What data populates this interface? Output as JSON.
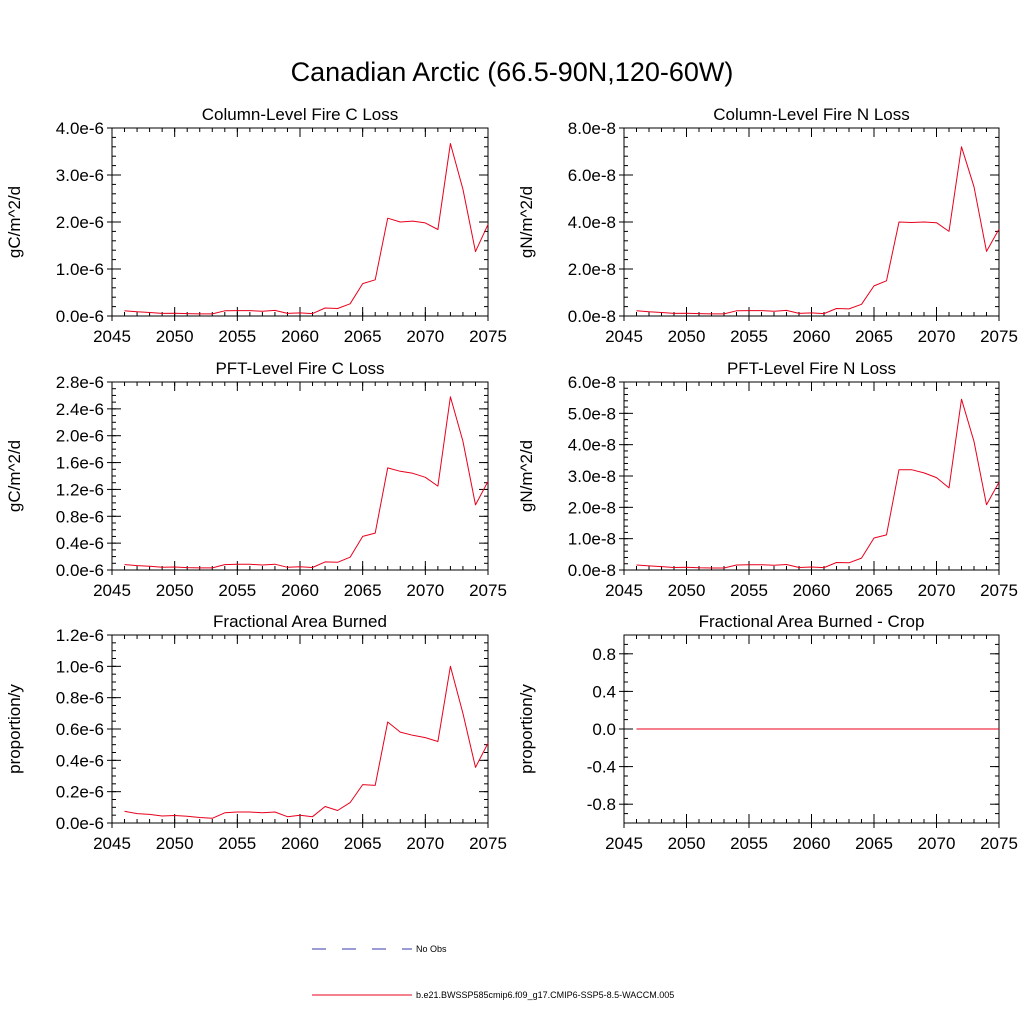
{
  "title": "Canadian Arctic (66.5-90N,120-60W)",
  "colors": {
    "model": "#e8001c",
    "obs": "#3a3aa8",
    "axis": "#000000"
  },
  "legend": {
    "obs_label": "No Obs",
    "model_label": "b.e21.BWSSP585cmip6.f09_g17.CMIP6-SSP5-8.5-WACCM.005"
  },
  "chart_data": [
    {
      "type": "line",
      "title": "Column-Level Fire C Loss",
      "ylabel": "gC/m^2/d",
      "xlim": [
        2045,
        2075
      ],
      "ylim": [
        0,
        4e-06
      ],
      "yticks": [
        0,
        1e-06,
        2e-06,
        3e-06,
        4e-06
      ],
      "yticklabels": [
        "0.0e-6",
        "1.0e-6",
        "2.0e-6",
        "3.0e-6",
        "4.0e-6"
      ],
      "yminor": 2e-07,
      "xticks": [
        2045,
        2050,
        2055,
        2060,
        2065,
        2070,
        2075
      ],
      "xticklabels": [
        "2045",
        "2050",
        "2055",
        "2060",
        "2065",
        "2070",
        "2075"
      ],
      "x": [
        2046,
        2047,
        2048,
        2049,
        2050,
        2051,
        2052,
        2053,
        2054,
        2055,
        2056,
        2057,
        2058,
        2059,
        2060,
        2061,
        2062,
        2063,
        2064,
        2065,
        2066,
        2067,
        2068,
        2069,
        2070,
        2071,
        2072,
        2073,
        2074,
        2075
      ],
      "series": [
        {
          "name": "model",
          "values": [
            1.1e-07,
            9e-08,
            7.5e-08,
            5.5e-08,
            6e-08,
            5e-08,
            4.5e-08,
            4.5e-08,
            1.1e-07,
            1.15e-07,
            1.15e-07,
            1e-07,
            1.2e-07,
            5.5e-08,
            6.5e-08,
            5e-08,
            1.7e-07,
            1.6e-07,
            2.6e-07,
            6.9e-07,
            7.7e-07,
            2.08e-06,
            2e-06,
            2.02e-06,
            1.98e-06,
            1.84e-06,
            3.67e-06,
            2.7e-06,
            1.37e-06,
            1.95e-06
          ]
        }
      ]
    },
    {
      "type": "line",
      "title": "Column-Level Fire N Loss",
      "ylabel": "gN/m^2/d",
      "xlim": [
        2045,
        2075
      ],
      "ylim": [
        0,
        8e-08
      ],
      "yticks": [
        0,
        2e-08,
        4e-08,
        6e-08,
        8e-08
      ],
      "yticklabels": [
        "0.0e-8",
        "2.0e-8",
        "4.0e-8",
        "6.0e-8",
        "8.0e-8"
      ],
      "yminor": 4e-09,
      "xticks": [
        2045,
        2050,
        2055,
        2060,
        2065,
        2070,
        2075
      ],
      "xticklabels": [
        "2045",
        "2050",
        "2055",
        "2060",
        "2065",
        "2070",
        "2075"
      ],
      "x": [
        2046,
        2047,
        2048,
        2049,
        2050,
        2051,
        2052,
        2053,
        2054,
        2055,
        2056,
        2057,
        2058,
        2059,
        2060,
        2061,
        2062,
        2063,
        2064,
        2065,
        2066,
        2067,
        2068,
        2069,
        2070,
        2071,
        2072,
        2073,
        2074,
        2075
      ],
      "series": [
        {
          "name": "model",
          "values": [
            2.2e-09,
            1.8e-09,
            1.5e-09,
            1.1e-09,
            1.2e-09,
            1e-09,
            9e-10,
            9e-10,
            2.2e-09,
            2.3e-09,
            2.3e-09,
            2e-09,
            2.4e-09,
            1.1e-09,
            1.3e-09,
            1e-09,
            3.2e-09,
            3e-09,
            5e-09,
            1.28e-08,
            1.5e-08,
            4e-08,
            3.98e-08,
            4e-08,
            3.97e-08,
            3.6e-08,
            7.2e-08,
            5.5e-08,
            2.75e-08,
            3.7e-08
          ]
        }
      ]
    },
    {
      "type": "line",
      "title": "PFT-Level Fire C Loss",
      "ylabel": "gC/m^2/d",
      "xlim": [
        2045,
        2075
      ],
      "ylim": [
        0,
        2.8e-06
      ],
      "yticks": [
        0,
        4e-07,
        8e-07,
        1.2e-06,
        1.6e-06,
        2e-06,
        2.4e-06,
        2.8e-06
      ],
      "yticklabels": [
        "0.0e-6",
        "0.4e-6",
        "0.8e-6",
        "1.2e-6",
        "1.6e-6",
        "2.0e-6",
        "2.4e-6",
        "2.8e-6"
      ],
      "yminor": 1e-07,
      "xticks": [
        2045,
        2050,
        2055,
        2060,
        2065,
        2070,
        2075
      ],
      "xticklabels": [
        "2045",
        "2050",
        "2055",
        "2060",
        "2065",
        "2070",
        "2075"
      ],
      "x": [
        2046,
        2047,
        2048,
        2049,
        2050,
        2051,
        2052,
        2053,
        2054,
        2055,
        2056,
        2057,
        2058,
        2059,
        2060,
        2061,
        2062,
        2063,
        2064,
        2065,
        2066,
        2067,
        2068,
        2069,
        2070,
        2071,
        2072,
        2073,
        2074,
        2075
      ],
      "series": [
        {
          "name": "model",
          "values": [
            8e-08,
            6.5e-08,
            5.5e-08,
            4e-08,
            4.5e-08,
            3.5e-08,
            3.2e-08,
            3.2e-08,
            8e-08,
            8.5e-08,
            8.5e-08,
            7.5e-08,
            8.7e-08,
            4e-08,
            4.8e-08,
            3.7e-08,
            1.2e-07,
            1.15e-07,
            1.9e-07,
            5e-07,
            5.5e-07,
            1.52e-06,
            1.47e-06,
            1.44e-06,
            1.38e-06,
            1.25e-06,
            2.58e-06,
            1.92e-06,
            9.7e-07,
            1.32e-06
          ]
        }
      ]
    },
    {
      "type": "line",
      "title": "PFT-Level Fire N Loss",
      "ylabel": "gN/m^2/d",
      "xlim": [
        2045,
        2075
      ],
      "ylim": [
        0,
        6e-08
      ],
      "yticks": [
        0,
        1e-08,
        2e-08,
        3e-08,
        4e-08,
        5e-08,
        6e-08
      ],
      "yticklabels": [
        "0.0e-8",
        "1.0e-8",
        "2.0e-8",
        "3.0e-8",
        "4.0e-8",
        "5.0e-8",
        "6.0e-8"
      ],
      "yminor": 2e-09,
      "xticks": [
        2045,
        2050,
        2055,
        2060,
        2065,
        2070,
        2075
      ],
      "xticklabels": [
        "2045",
        "2050",
        "2055",
        "2060",
        "2065",
        "2070",
        "2075"
      ],
      "x": [
        2046,
        2047,
        2048,
        2049,
        2050,
        2051,
        2052,
        2053,
        2054,
        2055,
        2056,
        2057,
        2058,
        2059,
        2060,
        2061,
        2062,
        2063,
        2064,
        2065,
        2066,
        2067,
        2068,
        2069,
        2070,
        2071,
        2072,
        2073,
        2074,
        2075
      ],
      "series": [
        {
          "name": "model",
          "values": [
            1.6e-09,
            1.3e-09,
            1.1e-09,
            8e-10,
            9e-10,
            7e-10,
            6.5e-10,
            6.5e-10,
            1.6e-09,
            1.7e-09,
            1.7e-09,
            1.5e-09,
            1.75e-09,
            8e-10,
            9.5e-10,
            7.5e-10,
            2.4e-09,
            2.3e-09,
            3.8e-09,
            1.02e-08,
            1.12e-08,
            3.2e-08,
            3.2e-08,
            3.1e-08,
            2.95e-08,
            2.62e-08,
            5.45e-08,
            4.1e-08,
            2.08e-08,
            2.8e-08
          ]
        }
      ]
    },
    {
      "type": "line",
      "title": "Fractional Area Burned",
      "ylabel": "proportion/y",
      "xlim": [
        2045,
        2075
      ],
      "ylim": [
        0,
        1.2e-06
      ],
      "yticks": [
        0,
        2e-07,
        4e-07,
        6e-07,
        8e-07,
        1e-06,
        1.2e-06
      ],
      "yticklabels": [
        "0.0e-6",
        "0.2e-6",
        "0.4e-6",
        "0.6e-6",
        "0.8e-6",
        "1.0e-6",
        "1.2e-6"
      ],
      "yminor": 5e-08,
      "xticks": [
        2045,
        2050,
        2055,
        2060,
        2065,
        2070,
        2075
      ],
      "xticklabels": [
        "2045",
        "2050",
        "2055",
        "2060",
        "2065",
        "2070",
        "2075"
      ],
      "x": [
        2046,
        2047,
        2048,
        2049,
        2050,
        2051,
        2052,
        2053,
        2054,
        2055,
        2056,
        2057,
        2058,
        2059,
        2060,
        2061,
        2062,
        2063,
        2064,
        2065,
        2066,
        2067,
        2068,
        2069,
        2070,
        2071,
        2072,
        2073,
        2074,
        2075
      ],
      "series": [
        {
          "name": "model",
          "values": [
            7.5e-08,
            6e-08,
            5.5e-08,
            4.5e-08,
            4.8e-08,
            4.3e-08,
            3.5e-08,
            3e-08,
            6.5e-08,
            7e-08,
            7e-08,
            6.5e-08,
            7e-08,
            4e-08,
            5e-08,
            4e-08,
            1.05e-07,
            8e-08,
            1.3e-07,
            2.45e-07,
            2.4e-07,
            6.45e-07,
            5.8e-07,
            5.6e-07,
            5.45e-07,
            5.2e-07,
            1e-06,
            7e-07,
            3.55e-07,
            5.1e-07
          ]
        }
      ]
    },
    {
      "type": "line",
      "title": "Fractional Area Burned - Crop",
      "ylabel": "proportion/y",
      "xlim": [
        2045,
        2075
      ],
      "ylim": [
        -1.0,
        1.0
      ],
      "yticks": [
        -0.8,
        -0.4,
        0.0,
        0.4,
        0.8
      ],
      "yticklabels": [
        "-0.8",
        "-0.4",
        "0.0",
        "0.4",
        "0.8"
      ],
      "yminor": 0.1,
      "xticks": [
        2045,
        2050,
        2055,
        2060,
        2065,
        2070,
        2075
      ],
      "xticklabels": [
        "2045",
        "2050",
        "2055",
        "2060",
        "2065",
        "2070",
        "2075"
      ],
      "x": [
        2046,
        2047,
        2048,
        2049,
        2050,
        2051,
        2052,
        2053,
        2054,
        2055,
        2056,
        2057,
        2058,
        2059,
        2060,
        2061,
        2062,
        2063,
        2064,
        2065,
        2066,
        2067,
        2068,
        2069,
        2070,
        2071,
        2072,
        2073,
        2074,
        2075
      ],
      "series": [
        {
          "name": "model",
          "values": [
            0,
            0,
            0,
            0,
            0,
            0,
            0,
            0,
            0,
            0,
            0,
            0,
            0,
            0,
            0,
            0,
            0,
            0,
            0,
            0,
            0,
            0,
            0,
            0,
            0,
            0,
            0,
            0,
            0,
            0
          ]
        }
      ]
    }
  ]
}
